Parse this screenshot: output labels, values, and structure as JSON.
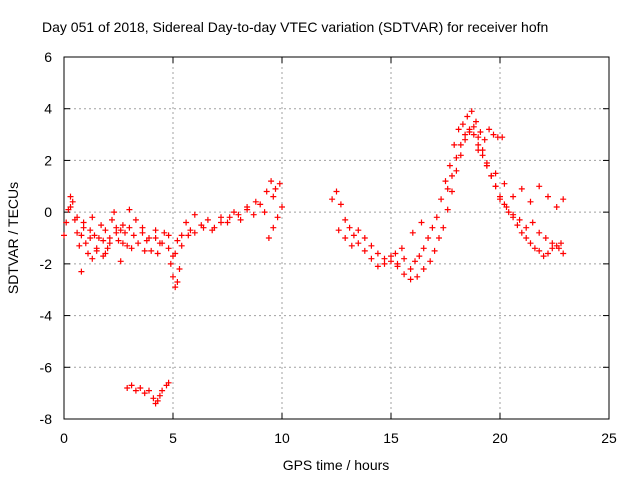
{
  "chart_data": {
    "type": "scatter",
    "title": "Day 051 of 2018, Sidereal Day-to-day VTEC variation (SDTVAR) for receiver hofn",
    "xlabel": "GPS time / hours",
    "ylabel": "SDTVAR / TECUs",
    "xlim": [
      0,
      25
    ],
    "ylim": [
      -8,
      6
    ],
    "xticks": [
      "0",
      "5",
      "10",
      "15",
      "20",
      "25"
    ],
    "yticks": [
      "-8",
      "-6",
      "-4",
      "-2",
      "0",
      "2",
      "4",
      "6"
    ],
    "grid": true,
    "marker": "+",
    "color": "#ff0000",
    "series": [
      {
        "name": "SDTVAR",
        "x": [
          0.0,
          0.1,
          0.2,
          0.3,
          0.4,
          0.5,
          0.6,
          0.7,
          0.8,
          0.9,
          1.0,
          1.1,
          1.2,
          1.3,
          1.4,
          1.5,
          1.6,
          1.7,
          1.8,
          1.9,
          2.0,
          2.1,
          2.2,
          2.3,
          2.4,
          2.5,
          2.6,
          2.7,
          2.8,
          2.9,
          3.0,
          3.2,
          3.4,
          3.6,
          3.8,
          4.0,
          4.2,
          4.4,
          4.6,
          4.8,
          5.0,
          5.2,
          5.4,
          5.6,
          5.8,
          6.0,
          6.3,
          6.6,
          6.9,
          7.2,
          7.5,
          7.8,
          8.1,
          8.4,
          8.7,
          9.0,
          9.3,
          9.5,
          9.7,
          9.9,
          10.0,
          0.3,
          0.6,
          0.9,
          1.2,
          1.5,
          1.8,
          2.1,
          2.4,
          2.7,
          3.0,
          3.3,
          3.6,
          3.9,
          4.2,
          4.5,
          4.8,
          5.1,
          5.4,
          5.7,
          6.0,
          6.4,
          6.8,
          7.2,
          7.6,
          8.0,
          8.4,
          8.8,
          9.2,
          9.6,
          0.8,
          1.3,
          1.9,
          2.6,
          3.1,
          3.7,
          4.3,
          4.9,
          5.0,
          5.1,
          5.2,
          5.3,
          9.4,
          9.6,
          9.8,
          2.9,
          3.1,
          3.3,
          3.5,
          3.7,
          3.9,
          4.1,
          4.2,
          4.3,
          4.4,
          4.5,
          4.7,
          4.8,
          12.3,
          12.5,
          12.7,
          12.9,
          13.1,
          13.3,
          13.5,
          13.8,
          14.1,
          14.4,
          14.7,
          15.0,
          15.3,
          15.6,
          15.9,
          16.1,
          16.3,
          16.5,
          16.7,
          16.9,
          17.1,
          17.3,
          17.5,
          17.7,
          17.9,
          18.1,
          18.3,
          18.5,
          18.7,
          18.9,
          19.1,
          19.3,
          19.5,
          19.7,
          19.9,
          20.1,
          12.6,
          12.9,
          13.2,
          13.5,
          13.8,
          14.1,
          14.4,
          14.7,
          15.0,
          15.3,
          15.6,
          15.9,
          16.2,
          16.5,
          16.8,
          17.0,
          17.2,
          17.4,
          17.6,
          17.8,
          18.0,
          18.2,
          18.4,
          18.6,
          18.8,
          19.0,
          19.2,
          19.4,
          19.6,
          19.8,
          20.0,
          20.2,
          20.4,
          20.6,
          20.8,
          21.0,
          21.2,
          21.4,
          21.6,
          21.8,
          22.0,
          22.2,
          22.4,
          22.6,
          22.8,
          17.6,
          17.8,
          18.0,
          18.2,
          18.4,
          18.6,
          18.8,
          19.0,
          19.2,
          19.4,
          19.6,
          19.8,
          20.0,
          20.3,
          20.6,
          20.9,
          21.2,
          21.5,
          21.8,
          22.1,
          22.4,
          22.7,
          22.9,
          19.0,
          19.4,
          19.8,
          20.2,
          20.6,
          21.0,
          21.4,
          21.8,
          22.2,
          22.6,
          22.9,
          15.2,
          15.5,
          16.0,
          16.4
        ],
        "y": [
          -0.9,
          -0.4,
          0.1,
          0.6,
          0.4,
          -0.3,
          -0.8,
          -1.3,
          -0.9,
          -0.4,
          -1.2,
          -1.6,
          -0.7,
          -0.2,
          -0.9,
          -1.5,
          -1.0,
          -0.5,
          -1.1,
          -0.7,
          -1.4,
          -1.0,
          -0.3,
          0.0,
          -0.6,
          -1.1,
          -0.7,
          -1.2,
          -0.8,
          -1.3,
          -0.6,
          -0.9,
          -1.2,
          -0.8,
          -1.1,
          -1.5,
          -1.0,
          -1.2,
          -0.8,
          -1.4,
          -1.7,
          -1.1,
          -0.9,
          -0.4,
          -0.7,
          -0.1,
          -0.5,
          -0.3,
          -0.6,
          -0.2,
          -0.4,
          0.0,
          -0.3,
          0.2,
          -0.1,
          0.3,
          0.8,
          1.2,
          0.9,
          1.1,
          0.2,
          0.2,
          -0.2,
          -0.6,
          -1.0,
          -1.4,
          -1.7,
          -1.2,
          -0.8,
          -0.5,
          0.1,
          -0.3,
          -0.6,
          -1.0,
          -0.7,
          -1.2,
          -0.9,
          -1.6,
          -1.3,
          -0.9,
          -0.8,
          -0.6,
          -0.7,
          -0.4,
          -0.2,
          -0.1,
          0.1,
          0.4,
          0.0,
          0.6,
          -2.3,
          -1.8,
          -1.6,
          -1.9,
          -1.4,
          -1.5,
          -1.6,
          -2.0,
          -2.5,
          -2.9,
          -2.7,
          -2.2,
          -1.0,
          -0.6,
          -0.2,
          -6.8,
          -6.7,
          -6.9,
          -6.8,
          -7.0,
          -6.9,
          -7.2,
          -7.4,
          -7.3,
          -7.1,
          -6.9,
          -6.7,
          -6.6,
          0.5,
          0.8,
          0.3,
          -0.3,
          -0.6,
          -0.9,
          -0.7,
          -1.0,
          -1.3,
          -1.6,
          -1.8,
          -1.9,
          -2.0,
          -1.8,
          -2.2,
          -1.9,
          -1.7,
          -1.4,
          -1.0,
          -0.6,
          -0.2,
          0.5,
          1.2,
          1.8,
          2.6,
          3.2,
          3.4,
          3.7,
          3.9,
          3.5,
          3.1,
          2.8,
          3.2,
          3.0,
          2.9,
          2.9,
          -0.7,
          -1.0,
          -1.3,
          -1.2,
          -1.5,
          -1.8,
          -2.1,
          -2.0,
          -1.7,
          -2.1,
          -2.4,
          -2.6,
          -2.5,
          -2.2,
          -1.9,
          -1.5,
          -1.0,
          -0.6,
          0.1,
          0.8,
          1.6,
          2.2,
          2.8,
          3.1,
          3.3,
          2.9,
          2.4,
          1.8,
          1.4,
          1.0,
          0.6,
          0.3,
          0.0,
          -0.2,
          -0.5,
          -0.8,
          -1.0,
          -1.2,
          -1.4,
          -1.5,
          -1.7,
          -1.6,
          -1.4,
          -1.3,
          -1.2,
          0.9,
          1.4,
          2.1,
          2.6,
          3.0,
          3.2,
          3.0,
          2.6,
          2.2,
          1.8,
          1.4,
          1.0,
          0.5,
          0.2,
          -0.1,
          -0.3,
          -0.6,
          -0.4,
          -0.8,
          -1.0,
          -1.2,
          -1.4,
          -1.6,
          2.4,
          1.9,
          1.5,
          1.1,
          0.6,
          0.9,
          0.4,
          1.0,
          0.6,
          0.2,
          0.5,
          -1.6,
          -1.4,
          -0.8,
          -0.4
        ]
      }
    ]
  }
}
